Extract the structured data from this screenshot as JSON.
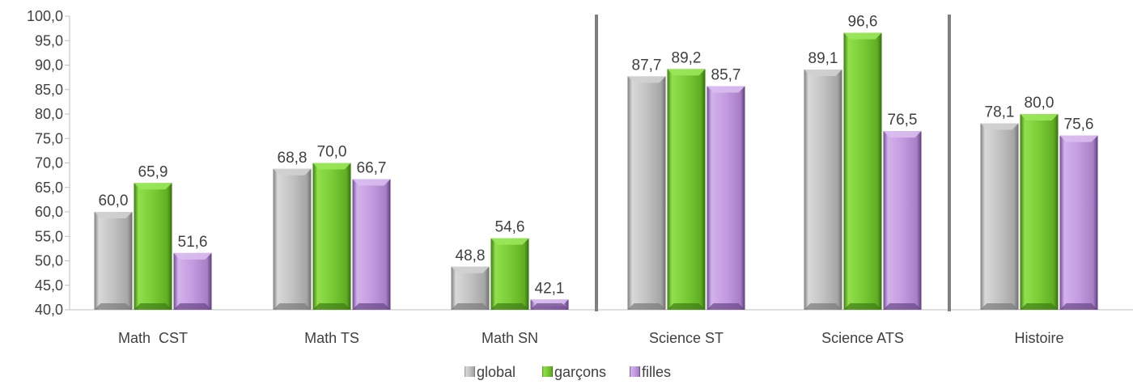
{
  "chart_data": {
    "type": "bar",
    "categories": [
      "Math  CST",
      "Math TS",
      "Math SN",
      "Science ST",
      "Science ATS",
      "Histoire"
    ],
    "series": [
      {
        "name": "global",
        "values": [
          60.0,
          68.8,
          48.8,
          87.7,
          89.1,
          78.1
        ]
      },
      {
        "name": "garçons",
        "values": [
          65.9,
          70.0,
          54.6,
          89.2,
          96.6,
          80.0
        ]
      },
      {
        "name": "filles",
        "values": [
          51.6,
          66.7,
          42.1,
          85.7,
          76.5,
          75.6
        ]
      }
    ],
    "value_labels": [
      [
        "60,0",
        "68,8",
        "48,8",
        "87,7",
        "89,1",
        "78,1"
      ],
      [
        "65,9",
        "70,0",
        "54,6",
        "89,2",
        "96,6",
        "80,0"
      ],
      [
        "51,6",
        "66,7",
        "42,1",
        "85,7",
        "76,5",
        "75,6"
      ]
    ],
    "y_ticks": [
      "40,0",
      "45,0",
      "50,0",
      "55,0",
      "60,0",
      "65,0",
      "70,0",
      "75,0",
      "80,0",
      "85,0",
      "90,0",
      "95,0",
      "100,0"
    ],
    "ylim": [
      40,
      100
    ],
    "grid": false,
    "legend_position": "bottom",
    "separators_after_categories": [
      2,
      4
    ],
    "colors": {
      "global": "#b8b8b8",
      "garçons": "#7fd23a",
      "filles": "#c39be0",
      "axis": "#bfbfbf",
      "separator": "#7f7f7f",
      "text": "#404040"
    }
  }
}
